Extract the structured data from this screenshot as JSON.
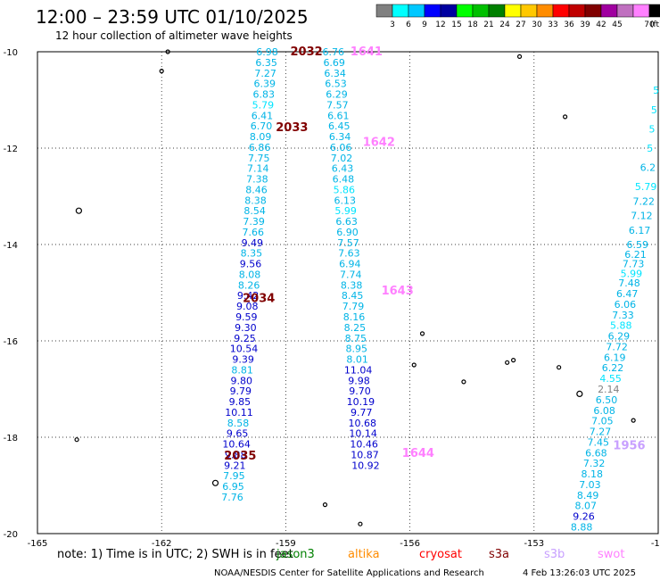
{
  "header": {
    "title": "12:00 – 23:59 UTC 01/10/2025",
    "subtitle": "12 hour collection of altimeter wave heights"
  },
  "colorbar": {
    "colors": [
      "#808080",
      "#00ffff",
      "#00c8ff",
      "#0000ff",
      "#0000a0",
      "#00ff00",
      "#00c000",
      "#008000",
      "#ffff00",
      "#ffc800",
      "#ff8c00",
      "#ff0000",
      "#c00000",
      "#800000",
      "#a000a0",
      "#c070c0",
      "#ff80ff",
      "#000000"
    ],
    "labels": [
      "3",
      "6",
      "9",
      "12",
      "15",
      "18",
      "21",
      "24",
      "27",
      "30",
      "33",
      "36",
      "39",
      "42",
      "45",
      "70"
    ],
    "unit": "(ft)"
  },
  "chart_data": {
    "type": "scatter",
    "title": "12:00 – 23:59 UTC 01/10/2025",
    "subtitle": "12 hour collection of altimeter wave heights",
    "xlim": [
      -165,
      -150
    ],
    "ylim": [
      -20,
      -10
    ],
    "x_ticks": [
      "-165",
      "-162",
      "-159",
      "-156",
      "-153",
      "-15"
    ],
    "y_ticks": [
      "-10",
      "-12",
      "-14",
      "-16",
      "-18",
      "-20"
    ],
    "grid": true,
    "tracks": [
      {
        "points": [
          {
            "x": -159.45,
            "y": -10.0,
            "v": "6.98"
          },
          {
            "x": -159.47,
            "y": -10.22,
            "v": "6.35"
          },
          {
            "x": -159.49,
            "y": -10.44,
            "v": "7.27"
          },
          {
            "x": -159.51,
            "y": -10.66,
            "v": "6.39"
          },
          {
            "x": -159.53,
            "y": -10.88,
            "v": "6.83"
          },
          {
            "x": -159.55,
            "y": -11.1,
            "v": "5.79"
          },
          {
            "x": -159.57,
            "y": -11.32,
            "v": "6.41"
          },
          {
            "x": -159.59,
            "y": -11.54,
            "v": "6.70"
          },
          {
            "x": -159.61,
            "y": -11.76,
            "v": "8.09"
          },
          {
            "x": -159.63,
            "y": -11.98,
            "v": "6.86"
          },
          {
            "x": -159.65,
            "y": -12.2,
            "v": "7.75"
          },
          {
            "x": -159.67,
            "y": -12.42,
            "v": "7.14"
          },
          {
            "x": -159.69,
            "y": -12.64,
            "v": "7.38"
          },
          {
            "x": -159.71,
            "y": -12.86,
            "v": "8.46"
          },
          {
            "x": -159.73,
            "y": -13.08,
            "v": "8.38"
          },
          {
            "x": -159.75,
            "y": -13.3,
            "v": "8.54"
          },
          {
            "x": -159.77,
            "y": -13.52,
            "v": "7.39"
          },
          {
            "x": -159.79,
            "y": -13.74,
            "v": "7.66"
          },
          {
            "x": -159.81,
            "y": -13.96,
            "v": "9.49"
          },
          {
            "x": -159.83,
            "y": -14.18,
            "v": "8.35"
          },
          {
            "x": -159.85,
            "y": -14.4,
            "v": "9.56"
          },
          {
            "x": -159.87,
            "y": -14.62,
            "v": "8.08"
          },
          {
            "x": -159.89,
            "y": -14.84,
            "v": "8.26"
          },
          {
            "x": -159.91,
            "y": -15.06,
            "v": "9.42"
          },
          {
            "x": -159.93,
            "y": -15.28,
            "v": "9.08"
          },
          {
            "x": -159.95,
            "y": -15.5,
            "v": "9.59"
          },
          {
            "x": -159.97,
            "y": -15.72,
            "v": "9.30"
          },
          {
            "x": -159.99,
            "y": -15.94,
            "v": "9.25"
          },
          {
            "x": -160.01,
            "y": -16.16,
            "v": "10.54"
          },
          {
            "x": -160.03,
            "y": -16.38,
            "v": "9.39"
          },
          {
            "x": -160.05,
            "y": -16.6,
            "v": "8.81"
          },
          {
            "x": -160.07,
            "y": -16.82,
            "v": "9.80"
          },
          {
            "x": -160.09,
            "y": -17.04,
            "v": "9.79"
          },
          {
            "x": -160.11,
            "y": -17.26,
            "v": "9.85"
          },
          {
            "x": -160.13,
            "y": -17.48,
            "v": "10.11"
          },
          {
            "x": -160.15,
            "y": -17.7,
            "v": "8.58"
          },
          {
            "x": -160.17,
            "y": -17.92,
            "v": "9.65"
          },
          {
            "x": -160.19,
            "y": -18.14,
            "v": "10.64"
          },
          {
            "x": -160.21,
            "y": -18.36,
            "v": "9.88"
          },
          {
            "x": -160.23,
            "y": -18.58,
            "v": "9.21"
          },
          {
            "x": -160.25,
            "y": -18.8,
            "v": "7.95"
          },
          {
            "x": -160.27,
            "y": -19.02,
            "v": "6.95"
          },
          {
            "x": -160.29,
            "y": -19.24,
            "v": "7.76"
          }
        ],
        "time_labels": [
          {
            "x": -158.5,
            "y": -10.0,
            "t": "2032"
          },
          {
            "x": -158.85,
            "y": -11.57,
            "t": "2033"
          },
          {
            "x": -159.65,
            "y": -15.12,
            "t": "2034"
          },
          {
            "x": -160.1,
            "y": -18.39,
            "t": "2035"
          }
        ]
      },
      {
        "points": [
          {
            "x": -157.85,
            "y": -10.0,
            "v": "6.76"
          },
          {
            "x": -157.83,
            "y": -10.22,
            "v": "6.69"
          },
          {
            "x": -157.81,
            "y": -10.44,
            "v": "6.34"
          },
          {
            "x": -157.79,
            "y": -10.66,
            "v": "6.53"
          },
          {
            "x": -157.77,
            "y": -10.88,
            "v": "6.29"
          },
          {
            "x": -157.75,
            "y": -11.1,
            "v": "7.57"
          },
          {
            "x": -157.73,
            "y": -11.32,
            "v": "6.61"
          },
          {
            "x": -157.71,
            "y": -11.54,
            "v": "6.45"
          },
          {
            "x": -157.69,
            "y": -11.76,
            "v": "6.34"
          },
          {
            "x": -157.67,
            "y": -11.98,
            "v": "6.06"
          },
          {
            "x": -157.65,
            "y": -12.2,
            "v": "7.02"
          },
          {
            "x": -157.63,
            "y": -12.42,
            "v": "6.43"
          },
          {
            "x": -157.61,
            "y": -12.64,
            "v": "6.48"
          },
          {
            "x": -157.59,
            "y": -12.86,
            "v": "5.86"
          },
          {
            "x": -157.57,
            "y": -13.08,
            "v": "6.13"
          },
          {
            "x": -157.55,
            "y": -13.3,
            "v": "5.99"
          },
          {
            "x": -157.53,
            "y": -13.52,
            "v": "6.63"
          },
          {
            "x": -157.51,
            "y": -13.74,
            "v": "6.90"
          },
          {
            "x": -157.49,
            "y": -13.96,
            "v": "7.57"
          },
          {
            "x": -157.47,
            "y": -14.18,
            "v": "7.63"
          },
          {
            "x": -157.45,
            "y": -14.4,
            "v": "6.94"
          },
          {
            "x": -157.43,
            "y": -14.62,
            "v": "7.74"
          },
          {
            "x": -157.41,
            "y": -14.84,
            "v": "8.38"
          },
          {
            "x": -157.39,
            "y": -15.06,
            "v": "8.45"
          },
          {
            "x": -157.37,
            "y": -15.28,
            "v": "7.79"
          },
          {
            "x": -157.35,
            "y": -15.5,
            "v": "8.16"
          },
          {
            "x": -157.33,
            "y": -15.72,
            "v": "8.25"
          },
          {
            "x": -157.31,
            "y": -15.94,
            "v": "8.75"
          },
          {
            "x": -157.29,
            "y": -16.16,
            "v": "8.95"
          },
          {
            "x": -157.27,
            "y": -16.38,
            "v": "8.01"
          },
          {
            "x": -157.25,
            "y": -16.6,
            "v": "11.04"
          },
          {
            "x": -157.23,
            "y": -16.82,
            "v": "9.98"
          },
          {
            "x": -157.21,
            "y": -17.04,
            "v": "9.70"
          },
          {
            "x": -157.19,
            "y": -17.26,
            "v": "10.19"
          },
          {
            "x": -157.17,
            "y": -17.48,
            "v": "9.77"
          },
          {
            "x": -157.15,
            "y": -17.7,
            "v": "10.68"
          },
          {
            "x": -157.13,
            "y": -17.92,
            "v": "10.14"
          },
          {
            "x": -157.11,
            "y": -18.14,
            "v": "10.46"
          },
          {
            "x": -157.09,
            "y": -18.36,
            "v": "10.87"
          },
          {
            "x": -157.07,
            "y": -18.58,
            "v": "10.92"
          }
        ],
        "time_labels": [
          {
            "x": -157.05,
            "y": -10.0,
            "t": "1641"
          },
          {
            "x": -156.75,
            "y": -11.88,
            "t": "1642"
          },
          {
            "x": -156.3,
            "y": -14.96,
            "t": "1643"
          },
          {
            "x": -155.8,
            "y": -18.33,
            "t": "1644"
          }
        ]
      },
      {
        "points": [
          {
            "x": -150.05,
            "y": -10.8,
            "v": "5"
          },
          {
            "x": -150.1,
            "y": -11.2,
            "v": "5"
          },
          {
            "x": -150.15,
            "y": -11.6,
            "v": "5"
          },
          {
            "x": -150.2,
            "y": -12.0,
            "v": "5"
          },
          {
            "x": -150.25,
            "y": -12.4,
            "v": "6.2"
          },
          {
            "x": -150.3,
            "y": -12.8,
            "v": "5.79"
          },
          {
            "x": -150.35,
            "y": -13.1,
            "v": "7.22"
          },
          {
            "x": -150.4,
            "y": -13.4,
            "v": "7.12"
          },
          {
            "x": -150.45,
            "y": -13.7,
            "v": "6.17"
          },
          {
            "x": -150.5,
            "y": -14.0,
            "v": "6.59"
          },
          {
            "x": -150.55,
            "y": -14.2,
            "v": "6.21"
          },
          {
            "x": -150.6,
            "y": -14.4,
            "v": "7.73"
          },
          {
            "x": -150.65,
            "y": -14.6,
            "v": "5.99"
          },
          {
            "x": -150.7,
            "y": -14.8,
            "v": "7.48"
          },
          {
            "x": -150.75,
            "y": -15.02,
            "v": "6.47"
          },
          {
            "x": -150.8,
            "y": -15.24,
            "v": "6.06"
          },
          {
            "x": -150.85,
            "y": -15.46,
            "v": "7.33"
          },
          {
            "x": -150.9,
            "y": -15.68,
            "v": "5.88"
          },
          {
            "x": -150.95,
            "y": -15.9,
            "v": "6.29"
          },
          {
            "x": -151.0,
            "y": -16.12,
            "v": "7.72"
          },
          {
            "x": -151.05,
            "y": -16.34,
            "v": "6.19"
          },
          {
            "x": -151.1,
            "y": -16.56,
            "v": "6.22"
          },
          {
            "x": -151.15,
            "y": -16.78,
            "v": "4.55"
          },
          {
            "x": -151.2,
            "y": -17.0,
            "v": "2.14"
          },
          {
            "x": -151.25,
            "y": -17.22,
            "v": "6.50"
          },
          {
            "x": -151.3,
            "y": -17.44,
            "v": "6.08"
          },
          {
            "x": -151.35,
            "y": -17.66,
            "v": "7.05"
          },
          {
            "x": -151.4,
            "y": -17.88,
            "v": "7.27"
          },
          {
            "x": -151.45,
            "y": -18.1,
            "v": "7.45"
          },
          {
            "x": -151.5,
            "y": -18.32,
            "v": "6.68"
          },
          {
            "x": -151.55,
            "y": -18.54,
            "v": "7.32"
          },
          {
            "x": -151.6,
            "y": -18.76,
            "v": "8.18"
          },
          {
            "x": -151.65,
            "y": -18.98,
            "v": "7.03"
          },
          {
            "x": -151.7,
            "y": -19.2,
            "v": "8.49"
          },
          {
            "x": -151.75,
            "y": -19.42,
            "v": "8.07"
          },
          {
            "x": -151.8,
            "y": -19.64,
            "v": "9.26"
          },
          {
            "x": -151.85,
            "y": -19.86,
            "v": "8.88"
          }
        ],
        "time_labels": [
          {
            "x": -150.7,
            "y": -18.18,
            "t": "1956"
          }
        ]
      }
    ]
  },
  "footer": {
    "note": "note:  1) Time is in UTC; 2) SWH is in feet",
    "satellites": [
      {
        "name": "jason3",
        "color": "#008000"
      },
      {
        "name": "altika",
        "color": "#ff8c00"
      },
      {
        "name": "cryosat",
        "color": "#ff0000"
      },
      {
        "name": "s3a",
        "color": "#800000"
      },
      {
        "name": "s3b",
        "color": "#c8a0ff"
      },
      {
        "name": "swot",
        "color": "#ff80ff"
      }
    ],
    "credit": "NOAA/NESDIS Center for Satellite Applications and Research",
    "timestamp": "4 Feb 13:26:03 UTC 2025"
  },
  "islands": "small-island-outlines",
  "colors": {
    "track_time_a": "#800000",
    "track_time_b": "#ff80ff",
    "track_time_c": "#c8a0ff",
    "grid": "#000000"
  }
}
